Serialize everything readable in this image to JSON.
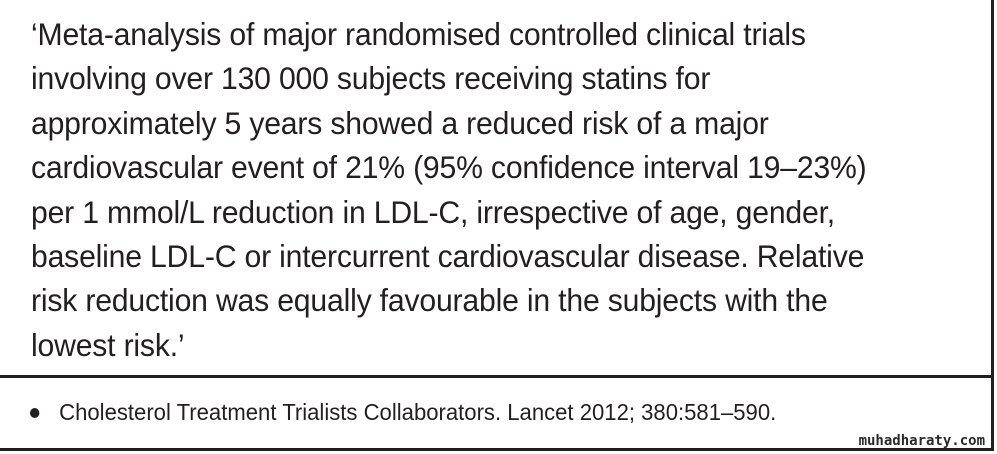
{
  "quote": {
    "text": "‘Meta-analysis of major randomised controlled clinical trials\ninvolving over 130 000 subjects receiving statins for\napproximately 5 years showed a reduced risk of a major\ncardiovascular event of 21% (95% confidence interval 19–23%)\nper 1 mmol/L reduction in LDL-C, irrespective of age, gender,\nbaseline LDL-C or intercurrent cardiovascular disease. Relative\nrisk reduction was equally favourable in the subjects with the\nlowest risk.’"
  },
  "reference": {
    "text": "Cholesterol Treatment Trialists Collaborators. Lancet 2012; 380:581–590."
  },
  "watermark": {
    "text": "muhadharaty.com"
  }
}
